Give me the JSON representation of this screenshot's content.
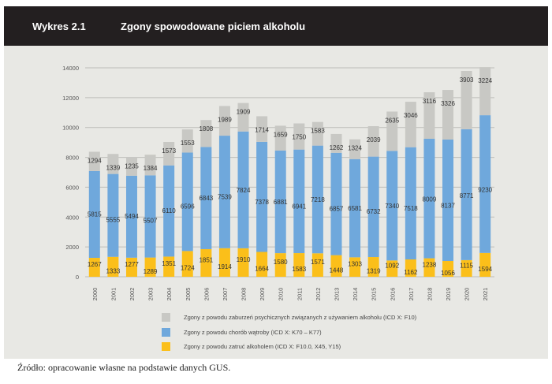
{
  "header": {
    "figure_number": "Wykres 2.1",
    "title": "Zgony spowodowane piciem alkoholu"
  },
  "source": "Źródło: opracowanie własne na podstawie danych GUS.",
  "chart_data": {
    "type": "bar",
    "stacked": true,
    "title": "Zgony spowodowane piciem alkoholu",
    "xlabel": "",
    "ylabel": "",
    "ylim": [
      0,
      14000
    ],
    "yticks": [
      0,
      2000,
      4000,
      6000,
      8000,
      10000,
      12000,
      14000
    ],
    "grid": true,
    "legend": "bottom",
    "categories": [
      "2000",
      "2001",
      "2002",
      "2003",
      "2004",
      "2005",
      "2006",
      "2007",
      "2008",
      "2009",
      "2010",
      "2011",
      "2012",
      "2013",
      "2014",
      "2015",
      "2016",
      "2017",
      "2018",
      "2019",
      "2020",
      "2021"
    ],
    "series": [
      {
        "name": "Zgony z powodu zatruć alkoholem (ICD X: F10.0, X45, Y15)",
        "color": "#fbbf1a",
        "values": [
          1267,
          1333,
          1277,
          1289,
          1351,
          1724,
          1851,
          1914,
          1910,
          1664,
          1580,
          1583,
          1571,
          1448,
          1303,
          1319,
          1092,
          1162,
          1238,
          1056,
          1115,
          1594
        ]
      },
      {
        "name": "Zgony z powodu chorób wątroby (ICD X: K70 – K77)",
        "color": "#6fa8dc",
        "values": [
          5815,
          5555,
          5494,
          5507,
          6110,
          6596,
          6843,
          7539,
          7824,
          7378,
          6881,
          6941,
          7218,
          6857,
          6581,
          6732,
          7340,
          7518,
          8009,
          8137,
          8771,
          9230
        ]
      },
      {
        "name": "Zgony z powodu zaburzeń psychicznych związanych z używaniem alkoholu (ICD X: F10)",
        "color": "#c8c8c4",
        "values": [
          1294,
          1339,
          1235,
          1384,
          1573,
          1553,
          1808,
          1989,
          1909,
          1714,
          1659,
          1750,
          1583,
          1262,
          1324,
          2039,
          2635,
          3046,
          3116,
          3326,
          3903,
          3224
        ]
      }
    ]
  }
}
